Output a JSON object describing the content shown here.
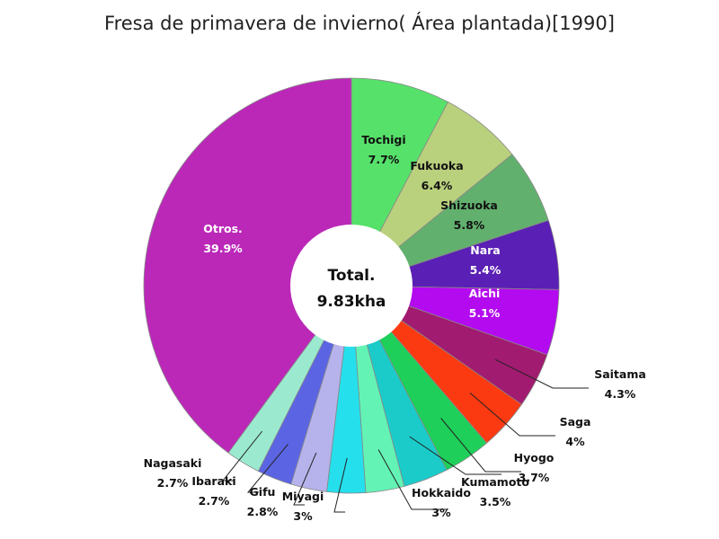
{
  "chart_data": {
    "type": "pie",
    "title": "Fresa de primavera de invierno( Área plantada)[1990]",
    "center_label": "Total.",
    "center_value": "9.83kha",
    "slices": [
      {
        "name": "Tochigi",
        "value": 7.7,
        "label": "7.7%",
        "color": "#56e16a"
      },
      {
        "name": "Fukuoka",
        "value": 6.4,
        "label": "6.4%",
        "color": "#b9d07d"
      },
      {
        "name": "Shizuoka",
        "value": 5.8,
        "label": "5.8%",
        "color": "#62b06e"
      },
      {
        "name": "Nara",
        "value": 5.4,
        "label": "5.4%",
        "color": "#5a1fb4"
      },
      {
        "name": "Aichi",
        "value": 5.1,
        "label": "5.1%",
        "color": "#b30aef"
      },
      {
        "name": "Saitama",
        "value": 4.3,
        "label": "4.3%",
        "color": "#a11b70"
      },
      {
        "name": "Saga",
        "value": 4,
        "label": "4%",
        "color": "#fb3a12"
      },
      {
        "name": "Hyogo",
        "value": 3.7,
        "label": "3.7%",
        "color": "#1ecf5a"
      },
      {
        "name": "Kumamoto",
        "value": 3.5,
        "label": "3.5%",
        "color": "#1bcbc9"
      },
      {
        "name": "Hokkaido",
        "value": 3,
        "label": "3%",
        "color": "#63f4b5"
      },
      {
        "name": "Miyagi",
        "value": 3,
        "label": "3%",
        "color": "#26dfec"
      },
      {
        "name": "Gifu",
        "value": 2.8,
        "label": "2.8%",
        "color": "#b6b3ec"
      },
      {
        "name": "Ibaraki",
        "value": 2.7,
        "label": "2.7%",
        "color": "#5b65e3"
      },
      {
        "name": "Nagasaki",
        "value": 2.7,
        "label": "2.7%",
        "color": "#9bead0"
      },
      {
        "name": "Otros.",
        "value": 39.9,
        "label": "39.9%",
        "color": "#bb28b8"
      }
    ]
  }
}
